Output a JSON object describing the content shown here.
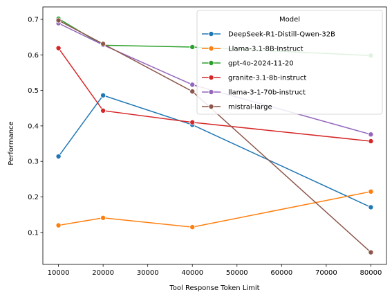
{
  "chart_data": {
    "type": "line",
    "xlabel": "Tool Response Token Limit",
    "ylabel": "Performance",
    "x": [
      10000,
      20000,
      40000,
      80000
    ],
    "xticks": [
      10000,
      20000,
      30000,
      40000,
      50000,
      60000,
      70000,
      80000
    ],
    "yticks": [
      0.1,
      0.2,
      0.3,
      0.4,
      0.5,
      0.6,
      0.7
    ],
    "xlim": [
      6500,
      83500
    ],
    "ylim": [
      0.01,
      0.735
    ],
    "grid": false,
    "legend": {
      "title": "Model",
      "placement": "top-right"
    },
    "series": [
      {
        "name": "DeepSeek-R1-Distill-Qwen-32B",
        "color": "#1f77b4",
        "values": [
          0.314,
          0.486,
          0.403,
          0.171
        ]
      },
      {
        "name": "Llama-3.1-8B-Instruct",
        "color": "#ff7f0e",
        "values": [
          0.12,
          0.141,
          0.115,
          0.215
        ]
      },
      {
        "name": "gpt-4o-2024-11-20",
        "color": "#2ca02c",
        "values": [
          0.702,
          0.627,
          0.622,
          0.598
        ]
      },
      {
        "name": "granite-3.1-8b-instruct",
        "color": "#d62728",
        "values": [
          0.619,
          0.443,
          0.41,
          0.357
        ]
      },
      {
        "name": "llama-3-1-70b-instruct",
        "color": "#9467bd",
        "values": [
          0.689,
          0.628,
          0.516,
          0.376
        ]
      },
      {
        "name": "mistral-large",
        "color": "#8c564b",
        "values": [
          0.697,
          0.631,
          0.497,
          0.044
        ]
      }
    ]
  }
}
